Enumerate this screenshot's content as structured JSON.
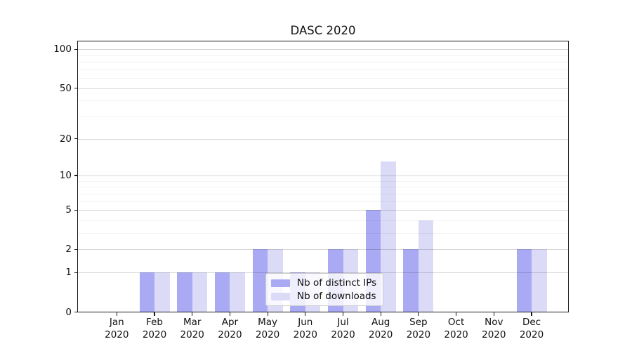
{
  "title": "DASC 2020",
  "chart_data": {
    "type": "bar",
    "title": "DASC 2020",
    "categories": [
      "Jan 2020",
      "Feb 2020",
      "Mar 2020",
      "Apr 2020",
      "May 2020",
      "Jun 2020",
      "Jul 2020",
      "Aug 2020",
      "Sep 2020",
      "Oct 2020",
      "Nov 2020",
      "Dec 2020"
    ],
    "series": [
      {
        "name": "Nb of distinct IPs",
        "color": "#a9a9f4",
        "values": [
          0,
          1,
          1,
          1,
          2,
          1,
          2,
          5,
          2,
          0,
          0,
          2
        ]
      },
      {
        "name": "Nb of downloads",
        "color": "#dbdbf7",
        "values": [
          0,
          1,
          1,
          1,
          2,
          1,
          2,
          13,
          4,
          0,
          0,
          2
        ]
      }
    ],
    "xlabel": "",
    "ylabel": "",
    "yscale": "log1p",
    "ylim": [
      0,
      116
    ],
    "grid": true,
    "legend_position": "lower center inside"
  },
  "axes": {
    "y_ticks": [
      {
        "label": "100",
        "value": 100
      },
      {
        "label": "50",
        "value": 50
      },
      {
        "label": "20",
        "value": 20
      },
      {
        "label": "10",
        "value": 10
      },
      {
        "label": "5",
        "value": 5
      },
      {
        "label": "2",
        "value": 2
      },
      {
        "label": "1",
        "value": 1
      },
      {
        "label": "0",
        "value": 0
      }
    ],
    "y_minor_ticks": [
      3,
      4,
      6,
      7,
      8,
      9,
      30,
      40,
      60,
      70,
      80,
      90
    ],
    "x_ticks": [
      {
        "month": "Jan",
        "year": "2020"
      },
      {
        "month": "Feb",
        "year": "2020"
      },
      {
        "month": "Mar",
        "year": "2020"
      },
      {
        "month": "Apr",
        "year": "2020"
      },
      {
        "month": "May",
        "year": "2020"
      },
      {
        "month": "Jun",
        "year": "2020"
      },
      {
        "month": "Jul",
        "year": "2020"
      },
      {
        "month": "Aug",
        "year": "2020"
      },
      {
        "month": "Sep",
        "year": "2020"
      },
      {
        "month": "Oct",
        "year": "2020"
      },
      {
        "month": "Nov",
        "year": "2020"
      },
      {
        "month": "Dec",
        "year": "2020"
      }
    ]
  },
  "legend": {
    "items": [
      {
        "label": "Nb of distinct IPs",
        "color": "#a9a9f4"
      },
      {
        "label": "Nb of downloads",
        "color": "#dbdbf7"
      }
    ]
  },
  "colors": {
    "background": "#ffffff",
    "spine": "#1a1a1a",
    "bar_distinct_ips": "#a9a9f4",
    "bar_downloads": "#dbdbf7",
    "grid_major": "rgba(0,0,0,0.16)",
    "grid_minor": "rgba(0,0,0,0.05)"
  }
}
